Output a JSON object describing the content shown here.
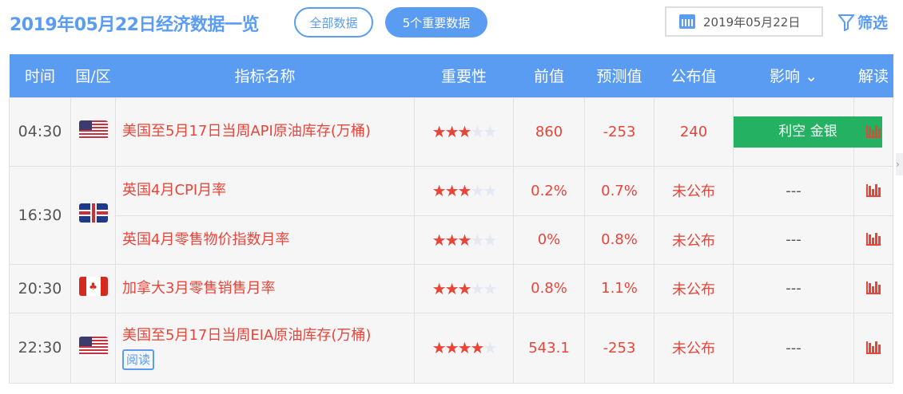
{
  "header": {
    "title": "2019年05月22日经济数据一览",
    "all_label": "全部数据",
    "important_label": "5个重要数据",
    "date_value": "2019年05月22日",
    "filter_label": "筛选"
  },
  "columns": [
    "时间",
    "国/区",
    "指标名称",
    "重要性",
    "前值",
    "预测值",
    "公布值",
    "影响",
    "解读"
  ],
  "colors": {
    "accent": "#5b9cf3",
    "value_red": "#e8453a",
    "impact_green": "#24b162"
  },
  "rows": [
    {
      "time": "04:30",
      "country": "US",
      "name": "美国至5月17日当周API原油库存(万桶)",
      "stars": 3,
      "previous": "860",
      "forecast": "-253",
      "actual": "240",
      "impact": "利空 金银"
    },
    {
      "time": "16:30",
      "country": "UK",
      "name": "英国4月CPI月率",
      "stars": 3,
      "previous": "0.2%",
      "forecast": "0.7%",
      "actual": "未公布",
      "impact": "---"
    },
    {
      "time": "",
      "country": "",
      "name": "英国4月零售物价指数月率",
      "stars": 3,
      "previous": "0%",
      "forecast": "0.8%",
      "actual": "未公布",
      "impact": "---"
    },
    {
      "time": "20:30",
      "country": "CA",
      "name": "加拿大3月零售销售月率",
      "stars": 3,
      "previous": "0.8%",
      "forecast": "1.1%",
      "actual": "未公布",
      "impact": "---"
    },
    {
      "time": "22:30",
      "country": "US",
      "name": "美国至5月17日当周EIA原油库存(万桶)",
      "read_label": "阅读",
      "stars": 4,
      "previous": "543.1",
      "forecast": "-253",
      "actual": "未公布",
      "impact": "---"
    }
  ]
}
